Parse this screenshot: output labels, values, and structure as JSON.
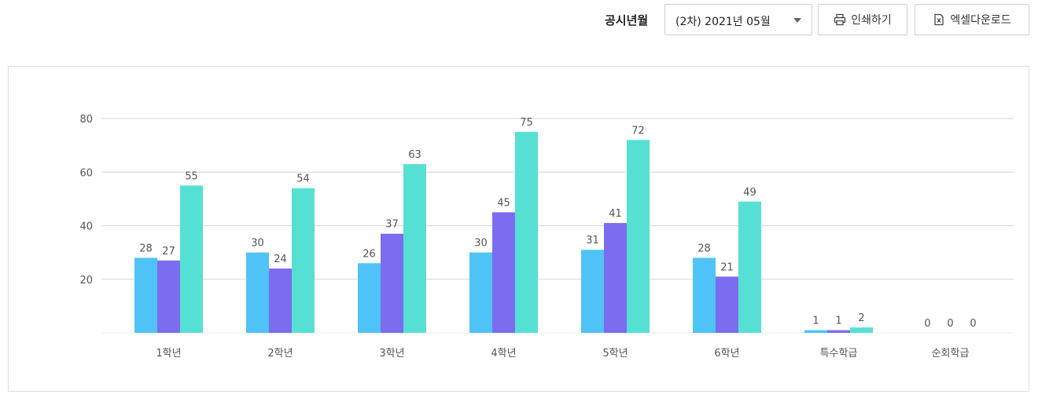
{
  "toolbar": {
    "period_label": "공시년월",
    "period_value": "(2차) 2021년 05월",
    "print_label": "인쇄하기",
    "excel_label": "엑셀다운로드"
  },
  "colors": {
    "series": [
      "#4fc3f7",
      "#7b6cf0",
      "#56e0d4"
    ],
    "grid": "#d6d6d6",
    "axis_text": "#555555"
  },
  "chart_data": {
    "type": "bar",
    "categories": [
      "1학년",
      "2학년",
      "3학년",
      "4학년",
      "5학년",
      "6학년",
      "특수학급",
      "순회학급"
    ],
    "series": [
      {
        "values": [
          28,
          30,
          26,
          30,
          31,
          28,
          1,
          0
        ]
      },
      {
        "values": [
          27,
          24,
          37,
          45,
          41,
          21,
          1,
          0
        ]
      },
      {
        "values": [
          55,
          54,
          63,
          75,
          72,
          49,
          2,
          0
        ]
      }
    ],
    "yticks": [
      20,
      40,
      60,
      80
    ],
    "ylim": [
      0,
      80
    ],
    "grid": true,
    "data_labels": true
  }
}
